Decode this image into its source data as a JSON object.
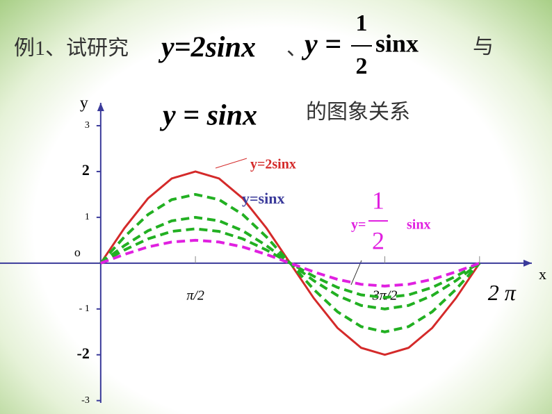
{
  "chart_data": {
    "type": "line",
    "title": {
      "prefix": "例1、试研究",
      "eq1": "y=2sinx",
      "sep": "、",
      "eq2_lhs": "y =",
      "eq2_num": "1",
      "eq2_den": "2",
      "eq2_rhs": "sinx",
      "conj": "与",
      "eq3": "y = sinx",
      "suffix": "的图象关系"
    },
    "x_label": "x",
    "y_label": "y",
    "origin_label": "o",
    "x": [
      0,
      0.393,
      0.785,
      1.178,
      1.571,
      1.963,
      2.356,
      2.749,
      3.142,
      3.534,
      3.927,
      4.32,
      4.712,
      5.105,
      5.498,
      5.89,
      6.283
    ],
    "series": [
      {
        "name": "y=2sinx",
        "color": "#d42a2a",
        "values": [
          0,
          0.765,
          1.414,
          1.848,
          2,
          1.848,
          1.414,
          0.765,
          0,
          -0.765,
          -1.414,
          -1.848,
          -2,
          -1.848,
          -1.414,
          -0.765,
          0
        ]
      },
      {
        "color": "#22b022",
        "values": [
          0,
          0.574,
          1.061,
          1.386,
          1.5,
          1.386,
          1.061,
          0.574,
          0,
          -0.574,
          -1.061,
          -1.386,
          -1.5,
          -1.386,
          -1.061,
          -0.574,
          0
        ]
      },
      {
        "name": "y=sinx",
        "color": "#22b022",
        "values": [
          0,
          0.383,
          0.707,
          0.924,
          1,
          0.924,
          0.707,
          0.383,
          0,
          -0.383,
          -0.707,
          -0.924,
          -1,
          -0.924,
          -0.707,
          -0.383,
          0
        ]
      },
      {
        "color": "#22b022",
        "values": [
          0,
          0.287,
          0.53,
          0.693,
          0.75,
          0.693,
          0.53,
          0.287,
          0,
          -0.287,
          -0.53,
          -0.693,
          -0.75,
          -0.693,
          -0.53,
          -0.287,
          0
        ]
      },
      {
        "name": {
          "lhs": "y=",
          "num": "1",
          "den": "2",
          "rhs": "sinx"
        },
        "color": "#e020e0",
        "values": [
          0,
          0.191,
          0.354,
          0.462,
          0.5,
          0.462,
          0.354,
          0.191,
          0,
          -0.191,
          -0.354,
          -0.462,
          -0.5,
          -0.462,
          -0.354,
          -0.191,
          0
        ]
      }
    ],
    "xlim": [
      -1.67,
      7.15
    ],
    "ylim": [
      -3.05,
      3.5
    ],
    "xticks": [
      {
        "value": 1.571,
        "label": "π/2"
      },
      {
        "value": 4.712,
        "label": "3π/2"
      },
      {
        "value": 6.283,
        "label": "2 π"
      }
    ],
    "yticks": [
      3,
      2,
      1,
      {
        "value": -1,
        "label": "- 1"
      },
      -2,
      -3
    ]
  }
}
